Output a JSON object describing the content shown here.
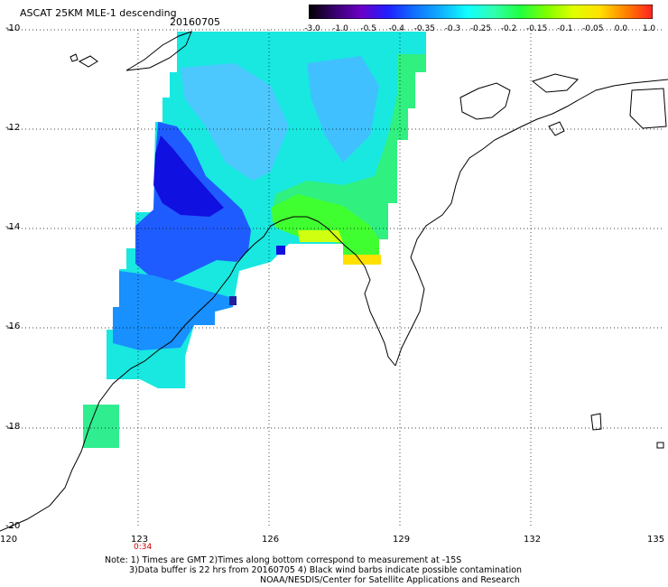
{
  "header": {
    "title": "ASCAT 25KM MLE-1 descending",
    "date": "20160705"
  },
  "colorbar": {
    "labels": [
      "-3.0",
      "-1.0",
      "-0.5",
      "-0.4",
      "-0.35",
      "-0.3",
      "-0.25",
      "-0.2",
      "-0.15",
      "-0.1",
      "-0.05",
      "0.0",
      "1.0"
    ],
    "colors": [
      "#000000",
      "#3a0070",
      "#6a00c8",
      "#2020ff",
      "#1070ff",
      "#10b0ff",
      "#10ffff",
      "#30ffb0",
      "#20ff40",
      "#80ff00",
      "#e0ff00",
      "#ffe000",
      "#ff8000",
      "#ff2020"
    ]
  },
  "axes": {
    "lat_labels": [
      "-10",
      "-12",
      "-14",
      "-16",
      "-18",
      "-20"
    ],
    "lon_labels": [
      "120",
      "123",
      "126",
      "129",
      "132",
      "135"
    ]
  },
  "time_label": "0:34",
  "notes": {
    "line1": "Note: 1) Times are GMT 2)Times along bottom correspond to measurement at -15S",
    "line2": "3)Data buffer is 22 hrs from 20160705 4) Black wind barbs indicate possible contamination",
    "line3": "NOAA/NESDIS/Center for Satellite Applications and Research"
  }
}
